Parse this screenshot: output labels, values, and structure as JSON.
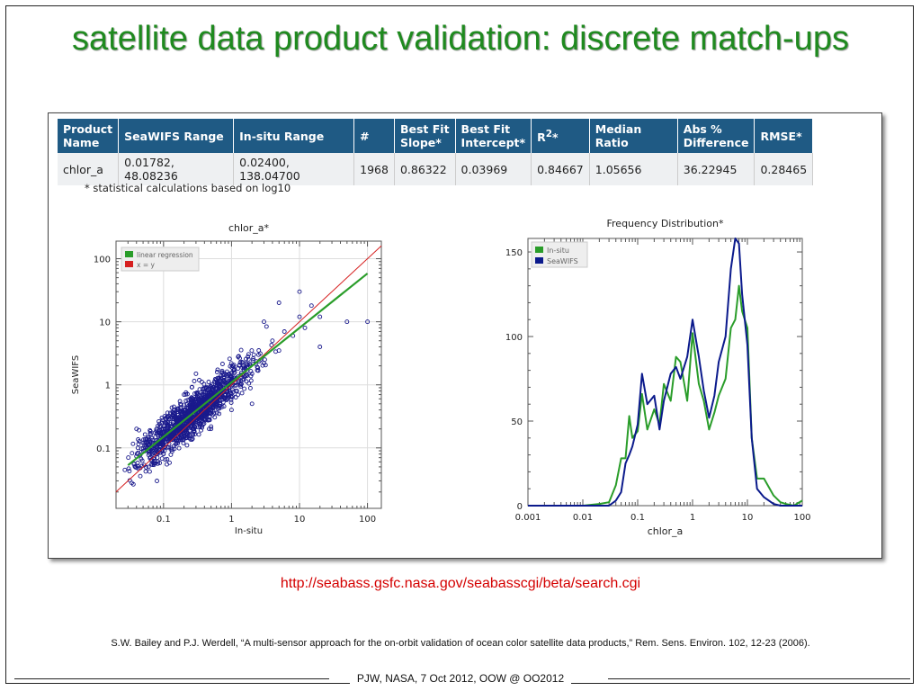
{
  "slide": {
    "title": "satellite data product validation: discrete match-ups",
    "url": "http://seabass.gsfc.nasa.gov/seabasscgi/beta/search.cgi",
    "citation": "S.W. Bailey and P.J. Werdell, “A multi-sensor approach for the on-orbit validation of ocean color satellite data products,” Rem. Sens. Environ. 102, 12-23 (2006).",
    "footer": "PJW, NASA, 7 Oct 2012, OOW @ OO2012"
  },
  "table": {
    "headers": {
      "product_l1": "Product",
      "product_l2": "Name",
      "seawifs_range": "SeaWIFS Range",
      "insitu_range": "In-situ Range",
      "count": "#",
      "slope_l1": "Best Fit",
      "slope_l2": "Slope*",
      "intercept_l1": "Best Fit",
      "intercept_l2": "Intercept*",
      "r2_base": "R",
      "r2_sup": "2",
      "r2_star": "*",
      "median_ratio": "Median Ratio",
      "abs_l1": "Abs %",
      "abs_l2": "Difference",
      "rmse": "RMSE*"
    },
    "row": {
      "product": "chlor_a",
      "seawifs_range": "0.01782, 48.08236",
      "insitu_range": "0.02400, 138.04700",
      "count": "1968",
      "slope": "0.86322",
      "intercept": "0.03969",
      "r2": "0.84667",
      "median_ratio": "1.05656",
      "abs_diff": "36.22945",
      "rmse": "0.28465"
    },
    "footnote": "* statistical calculations based on log10"
  },
  "chart_data": [
    {
      "type": "scatter",
      "title": "chlor_a*",
      "xlabel": "In-situ",
      "ylabel": "SeaWIFS",
      "xscale": "log",
      "yscale": "log",
      "xlim": [
        0.02,
        160
      ],
      "ylim": [
        0.011,
        190
      ],
      "xticks": [
        "0.1",
        "1",
        "10",
        "100"
      ],
      "yticks": [
        "0.1",
        "1",
        "10",
        "100"
      ],
      "grid": true,
      "legend": {
        "placement": "top-left",
        "entries": [
          {
            "name": "linear regression",
            "color": "#2a9d2a"
          },
          {
            "name": "x = y",
            "color": "#d62020"
          }
        ]
      },
      "lines": [
        {
          "name": "linear regression",
          "slope_log10": 0.86322,
          "intercept_log10": 0.03969,
          "x_range": [
            0.03,
            100
          ],
          "color": "#2a9d2a"
        },
        {
          "name": "x = y",
          "x_range": [
            0.02,
            160
          ],
          "color": "#d62020"
        }
      ],
      "points": {
        "count": 1968,
        "marker_color": "#1a1a8c",
        "samples": [
          [
            0.05,
            0.12
          ],
          [
            0.07,
            0.1
          ],
          [
            0.1,
            0.2
          ],
          [
            0.1,
            0.08
          ],
          [
            0.15,
            0.3
          ],
          [
            0.2,
            0.15
          ],
          [
            0.25,
            0.4
          ],
          [
            0.3,
            0.25
          ],
          [
            0.4,
            0.6
          ],
          [
            0.5,
            0.35
          ],
          [
            0.6,
            0.9
          ],
          [
            0.8,
            0.6
          ],
          [
            1,
            1.2
          ],
          [
            1.2,
            0.8
          ],
          [
            1.5,
            2
          ],
          [
            2,
            1.5
          ],
          [
            2.5,
            3
          ],
          [
            3,
            2.2
          ],
          [
            4,
            5
          ],
          [
            5,
            3.5
          ],
          [
            6,
            7
          ],
          [
            8,
            6
          ],
          [
            10,
            12
          ],
          [
            12,
            8
          ],
          [
            15,
            18
          ],
          [
            20,
            12
          ],
          [
            0.04,
            0.2
          ],
          [
            0.08,
            0.03
          ],
          [
            0.3,
            1.5
          ],
          [
            2,
            0.5
          ],
          [
            20,
            4
          ],
          [
            5,
            20
          ],
          [
            0.06,
            0.05
          ],
          [
            0.5,
            0.2
          ],
          [
            50,
            10
          ],
          [
            100,
            10
          ],
          [
            10,
            30
          ],
          [
            1,
            0.4
          ],
          [
            0.2,
            0.7
          ],
          [
            3,
            10
          ]
        ]
      }
    },
    {
      "type": "line",
      "title": "Frequency Distribution*",
      "xlabel": "chlor_a",
      "ylabel": "",
      "xscale": "log",
      "xlim": [
        0.001,
        100
      ],
      "ylim": [
        0,
        158
      ],
      "xticks": [
        "0.001",
        "0.01",
        "0.1",
        "1",
        "10",
        "100"
      ],
      "yticks": [
        "0",
        "50",
        "100",
        "150"
      ],
      "legend": {
        "placement": "top-left"
      },
      "x": [
        0.001,
        0.005,
        0.01,
        0.02,
        0.03,
        0.04,
        0.05,
        0.06,
        0.07,
        0.08,
        0.1,
        0.12,
        0.15,
        0.2,
        0.25,
        0.3,
        0.4,
        0.5,
        0.6,
        0.8,
        1,
        1.3,
        1.6,
        2,
        2.5,
        3,
        4,
        5,
        6,
        7,
        8,
        10,
        12,
        15,
        20,
        30,
        40,
        50,
        70,
        100
      ],
      "series": [
        {
          "name": "In-situ",
          "color": "#2a9d2a",
          "values": [
            0,
            0,
            0,
            1,
            2,
            12,
            28,
            28,
            53,
            40,
            44,
            66,
            45,
            57,
            48,
            72,
            62,
            88,
            85,
            62,
            102,
            72,
            62,
            45,
            55,
            65,
            75,
            105,
            110,
            130,
            115,
            105,
            40,
            16,
            16,
            6,
            2,
            1,
            0,
            3
          ]
        },
        {
          "name": "SeaWIFS",
          "color": "#0b1a8c",
          "values": [
            0,
            0,
            0,
            0,
            0,
            3,
            8,
            25,
            30,
            35,
            48,
            78,
            60,
            65,
            45,
            62,
            78,
            82,
            75,
            88,
            110,
            88,
            68,
            52,
            65,
            85,
            100,
            140,
            158,
            155,
            125,
            95,
            40,
            10,
            5,
            1,
            0,
            0,
            0,
            0
          ]
        }
      ]
    }
  ]
}
